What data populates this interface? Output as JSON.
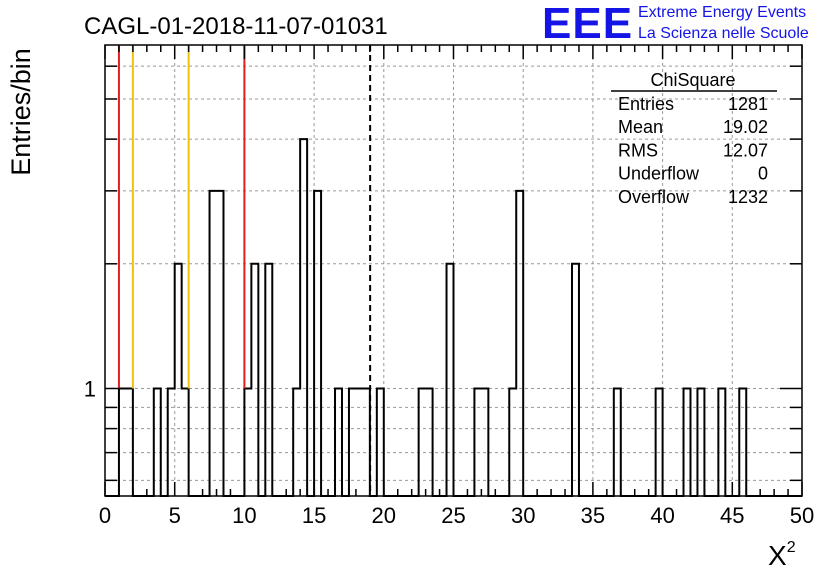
{
  "chart_data": {
    "type": "bar",
    "title": "CAGL-01-2018-11-07-01031",
    "xlabel": "X",
    "xlabel_sup": "2",
    "ylabel": "Entries/bin",
    "xlim": [
      0,
      50
    ],
    "ylog": true,
    "ylim": [
      0.55,
      6.75
    ],
    "bin_width": 0.5,
    "grid": true,
    "x_ticks": [
      "0",
      "5",
      "10",
      "15",
      "20",
      "25",
      "30",
      "35",
      "40",
      "45",
      "50"
    ],
    "y_ticks": [
      "1"
    ],
    "bins": [
      {
        "x": 1.0,
        "v": 1
      },
      {
        "x": 1.5,
        "v": 1
      },
      {
        "x": 3.5,
        "v": 1
      },
      {
        "x": 4.5,
        "v": 1
      },
      {
        "x": 5.0,
        "v": 2
      },
      {
        "x": 5.5,
        "v": 1
      },
      {
        "x": 7.5,
        "v": 3
      },
      {
        "x": 8.0,
        "v": 3
      },
      {
        "x": 10.0,
        "v": 1
      },
      {
        "x": 10.5,
        "v": 2
      },
      {
        "x": 11.5,
        "v": 2
      },
      {
        "x": 13.5,
        "v": 1
      },
      {
        "x": 14.0,
        "v": 4
      },
      {
        "x": 15.0,
        "v": 3
      },
      {
        "x": 16.5,
        "v": 1
      },
      {
        "x": 17.5,
        "v": 1
      },
      {
        "x": 18.0,
        "v": 1
      },
      {
        "x": 18.5,
        "v": 1
      },
      {
        "x": 19.5,
        "v": 1
      },
      {
        "x": 22.5,
        "v": 1
      },
      {
        "x": 23.0,
        "v": 1
      },
      {
        "x": 24.5,
        "v": 2
      },
      {
        "x": 26.5,
        "v": 1
      },
      {
        "x": 27.0,
        "v": 1
      },
      {
        "x": 29.0,
        "v": 1
      },
      {
        "x": 29.5,
        "v": 3
      },
      {
        "x": 33.5,
        "v": 2
      },
      {
        "x": 36.5,
        "v": 1
      },
      {
        "x": 39.5,
        "v": 1
      },
      {
        "x": 41.5,
        "v": 1
      },
      {
        "x": 42.5,
        "v": 1
      },
      {
        "x": 44.0,
        "v": 1
      },
      {
        "x": 45.5,
        "v": 1
      }
    ],
    "vertical_lines": [
      {
        "x": 1.0,
        "color": "#e02020",
        "style": "solid"
      },
      {
        "x": 2.0,
        "color": "#f0c010",
        "style": "solid"
      },
      {
        "x": 6.0,
        "color": "#f0c010",
        "style": "solid"
      },
      {
        "x": 10.0,
        "color": "#e02020",
        "style": "solid"
      },
      {
        "x": 19.02,
        "color": "#000000",
        "style": "dashed"
      }
    ],
    "stats": {
      "title": "ChiSquare",
      "rows": [
        {
          "label": "Entries",
          "value": "1281"
        },
        {
          "label": "Mean",
          "value": "19.02"
        },
        {
          "label": "RMS",
          "value": "12.07"
        },
        {
          "label": "Underflow",
          "value": "0"
        },
        {
          "label": "Overflow",
          "value": "1232"
        }
      ]
    }
  },
  "logo": {
    "mark": "EEE",
    "line1": "Extreme Energy Events",
    "line2": "La Scienza nelle Scuole",
    "color": "#1414e6"
  }
}
